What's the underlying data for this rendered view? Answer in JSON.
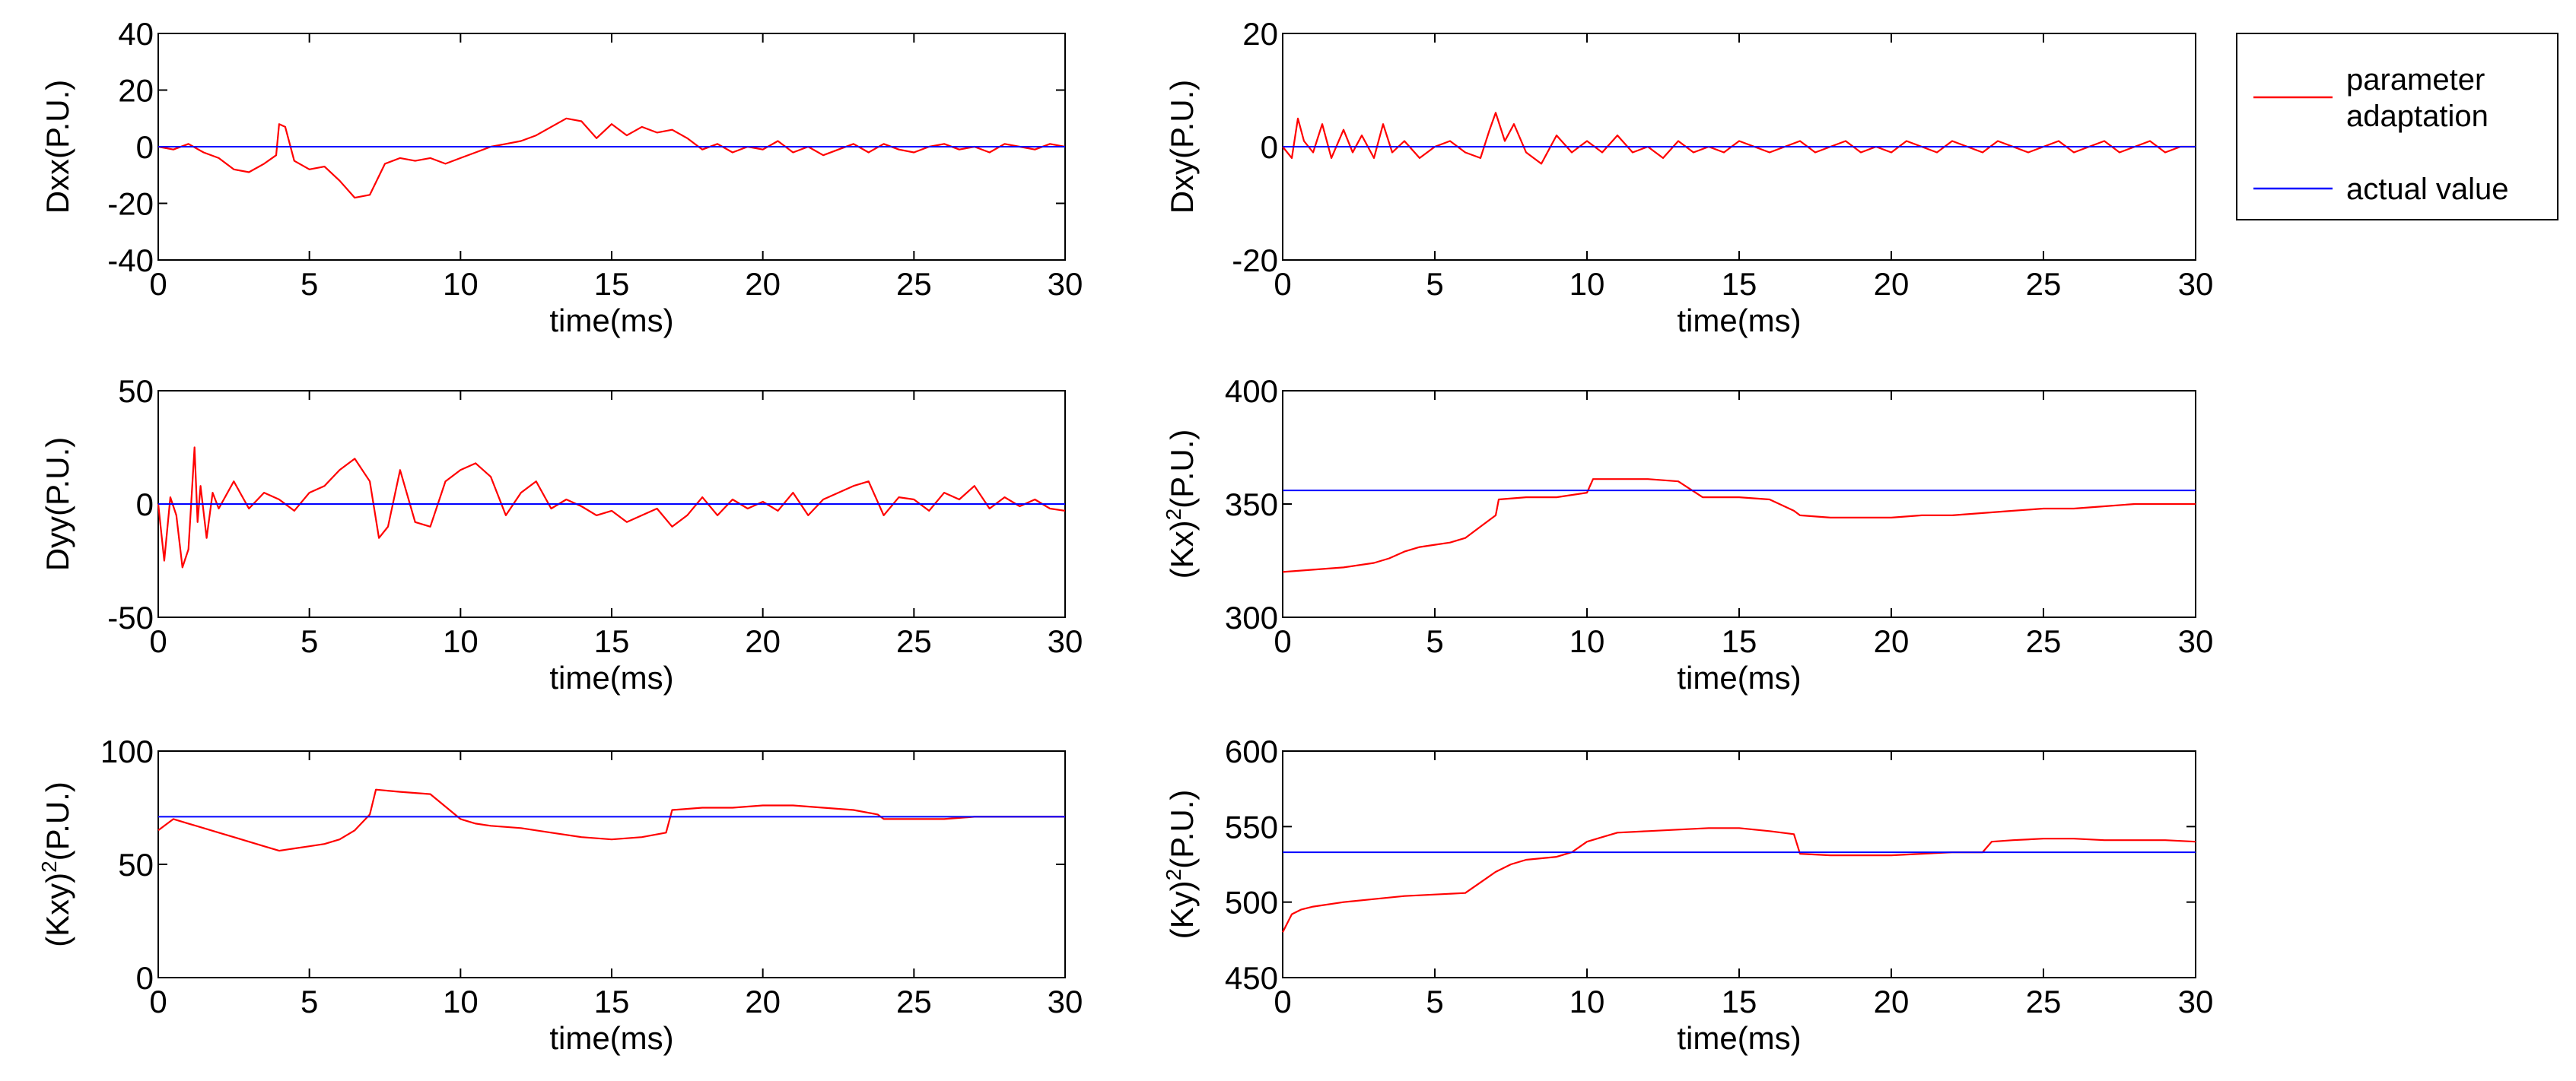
{
  "chart_data": [
    {
      "type": "line",
      "ylabel": "Dxx(P.U.)",
      "ylabel_sup": "",
      "xlabel": "time(ms)",
      "xlim": [
        0,
        30
      ],
      "ylim": [
        -40,
        40
      ],
      "xticks": [
        0,
        5,
        10,
        15,
        20,
        25,
        30
      ],
      "yticks": [
        -40,
        -20,
        0,
        20,
        40
      ],
      "actual_value": 0,
      "series": [
        {
          "name": "parameter adaptation",
          "x": [
            0,
            0.5,
            1,
            1.5,
            2,
            2.5,
            3,
            3.5,
            3.9,
            4.0,
            4.2,
            4.5,
            5,
            5.5,
            6,
            6.5,
            7,
            7.5,
            8,
            8.5,
            9,
            9.5,
            10,
            10.5,
            11,
            11.5,
            12,
            12.5,
            13,
            13.5,
            14,
            14.5,
            15,
            15.5,
            16,
            16.5,
            17,
            17.5,
            18,
            18.5,
            19,
            19.5,
            20,
            20.5,
            21,
            21.5,
            22,
            22.5,
            23,
            23.5,
            24,
            24.5,
            25,
            25.5,
            26,
            26.5,
            27,
            27.5,
            28,
            28.5,
            29,
            29.5,
            30
          ],
          "y": [
            0,
            -1,
            1,
            -2,
            -4,
            -8,
            -9,
            -6,
            -3,
            8,
            7,
            -5,
            -8,
            -7,
            -12,
            -18,
            -17,
            -6,
            -4,
            -5,
            -4,
            -6,
            -4,
            -2,
            0,
            1,
            2,
            4,
            7,
            10,
            9,
            3,
            8,
            4,
            7,
            5,
            6,
            3,
            -1,
            1,
            -2,
            0,
            -1,
            2,
            -2,
            0,
            -3,
            -1,
            1,
            -2,
            1,
            -1,
            -2,
            0,
            1,
            -1,
            0,
            -2,
            1,
            0,
            -1,
            1,
            0
          ]
        },
        {
          "name": "actual value",
          "x": [
            0,
            30
          ],
          "y": [
            0,
            0
          ]
        }
      ]
    },
    {
      "type": "line",
      "ylabel": "Dxy(P.U.)",
      "ylabel_sup": "",
      "xlabel": "time(ms)",
      "xlim": [
        0,
        30
      ],
      "ylim": [
        -20,
        20
      ],
      "xticks": [
        0,
        5,
        10,
        15,
        20,
        25,
        30
      ],
      "yticks": [
        -20,
        0,
        20
      ],
      "actual_value": 0,
      "series": [
        {
          "name": "parameter adaptation",
          "x": [
            0,
            0.3,
            0.5,
            0.7,
            1,
            1.3,
            1.6,
            2,
            2.3,
            2.6,
            3,
            3.3,
            3.6,
            4,
            4.5,
            5,
            5.5,
            6,
            6.5,
            6.8,
            7,
            7.3,
            7.6,
            8,
            8.5,
            9,
            9.5,
            10,
            10.5,
            11,
            11.5,
            12,
            12.5,
            13,
            13.5,
            14,
            14.5,
            15,
            15.5,
            16,
            16.5,
            17,
            17.5,
            18,
            18.5,
            19,
            19.5,
            20,
            20.5,
            21,
            21.5,
            22,
            22.5,
            23,
            23.5,
            24,
            24.5,
            25,
            25.5,
            26,
            26.5,
            27,
            27.5,
            28,
            28.5,
            29,
            29.5,
            30
          ],
          "y": [
            0,
            -2,
            5,
            1,
            -1,
            4,
            -2,
            3,
            -1,
            2,
            -2,
            4,
            -1,
            1,
            -2,
            0,
            1,
            -1,
            -2,
            3,
            6,
            1,
            4,
            -1,
            -3,
            2,
            -1,
            1,
            -1,
            2,
            -1,
            0,
            -2,
            1,
            -1,
            0,
            -1,
            1,
            0,
            -1,
            0,
            1,
            -1,
            0,
            1,
            -1,
            0,
            -1,
            1,
            0,
            -1,
            1,
            0,
            -1,
            1,
            0,
            -1,
            0,
            1,
            -1,
            0,
            1,
            -1,
            0,
            1,
            -1,
            0,
            0
          ]
        },
        {
          "name": "actual value",
          "x": [
            0,
            30
          ],
          "y": [
            0,
            0
          ]
        }
      ]
    },
    {
      "type": "line",
      "ylabel": "Dyy(P.U.)",
      "ylabel_sup": "",
      "xlabel": "time(ms)",
      "xlim": [
        0,
        30
      ],
      "ylim": [
        -50,
        50
      ],
      "xticks": [
        0,
        5,
        10,
        15,
        20,
        25,
        30
      ],
      "yticks": [
        -50,
        0,
        50
      ],
      "actual_value": 0,
      "series": [
        {
          "name": "parameter adaptation",
          "x": [
            0,
            0.2,
            0.4,
            0.6,
            0.8,
            1.0,
            1.2,
            1.3,
            1.4,
            1.6,
            1.8,
            2,
            2.5,
            3,
            3.5,
            4,
            4.5,
            5,
            5.5,
            6,
            6.5,
            7,
            7.3,
            7.6,
            8,
            8.5,
            9,
            9.5,
            10,
            10.5,
            11,
            11.5,
            12,
            12.5,
            13,
            13.5,
            14,
            14.5,
            15,
            15.5,
            16,
            16.5,
            17,
            17.5,
            18,
            18.5,
            19,
            19.5,
            20,
            20.5,
            21,
            21.5,
            22,
            22.5,
            23,
            23.5,
            24,
            24.5,
            25,
            25.5,
            26,
            26.5,
            27,
            27.5,
            28,
            28.5,
            29,
            29.5,
            30
          ],
          "y": [
            0,
            -25,
            3,
            -5,
            -28,
            -20,
            25,
            -8,
            8,
            -15,
            5,
            -2,
            10,
            -2,
            5,
            2,
            -3,
            5,
            8,
            15,
            20,
            10,
            -15,
            -10,
            15,
            -8,
            -10,
            10,
            15,
            18,
            12,
            -5,
            5,
            10,
            -2,
            2,
            -1,
            -5,
            -3,
            -8,
            -5,
            -2,
            -10,
            -5,
            3,
            -5,
            2,
            -2,
            1,
            -3,
            5,
            -5,
            2,
            5,
            8,
            10,
            -5,
            3,
            2,
            -3,
            5,
            2,
            8,
            -2,
            3,
            -1,
            2,
            -2,
            -3
          ]
        },
        {
          "name": "actual value",
          "x": [
            0,
            30
          ],
          "y": [
            0,
            0
          ]
        }
      ]
    },
    {
      "type": "line",
      "ylabel": "(Kx)",
      "ylabel_sup": "2",
      "ylabel_tail": "(P.U.)",
      "xlabel": "time(ms)",
      "xlim": [
        0,
        30
      ],
      "ylim": [
        300,
        400
      ],
      "xticks": [
        0,
        5,
        10,
        15,
        20,
        25,
        30
      ],
      "yticks": [
        300,
        350,
        400
      ],
      "actual_value": 356,
      "series": [
        {
          "name": "parameter adaptation",
          "x": [
            0,
            1,
            2,
            3,
            3.5,
            4,
            4.5,
            5,
            5.5,
            6,
            6.5,
            7,
            7.1,
            8,
            9,
            10,
            10.2,
            11,
            12,
            13,
            13.8,
            14,
            15,
            16,
            16.8,
            17,
            18,
            19,
            20,
            21,
            22,
            23,
            24,
            25,
            26,
            27,
            28,
            29,
            30
          ],
          "y": [
            320,
            321,
            322,
            324,
            326,
            329,
            331,
            332,
            333,
            335,
            340,
            345,
            352,
            353,
            353,
            355,
            361,
            361,
            361,
            360,
            353,
            353,
            353,
            352,
            347,
            345,
            344,
            344,
            344,
            345,
            345,
            346,
            347,
            348,
            348,
            349,
            350,
            350,
            350
          ]
        },
        {
          "name": "actual value",
          "x": [
            0,
            30
          ],
          "y": [
            356,
            356
          ]
        }
      ]
    },
    {
      "type": "line",
      "ylabel": "(Kxy)",
      "ylabel_sup": "2",
      "ylabel_tail": "(P.U.)",
      "xlabel": "time(ms)",
      "xlim": [
        0,
        30
      ],
      "ylim": [
        0,
        100
      ],
      "xticks": [
        0,
        5,
        10,
        15,
        20,
        25,
        30
      ],
      "yticks": [
        0,
        50,
        100
      ],
      "actual_value": 71,
      "series": [
        {
          "name": "parameter adaptation",
          "x": [
            0,
            0.5,
            1,
            1.5,
            2,
            2.5,
            3,
            3.5,
            4,
            4.5,
            5,
            5.5,
            6,
            6.5,
            7,
            7.2,
            8,
            9,
            10,
            10.5,
            11,
            12,
            13,
            14,
            15,
            16,
            16.8,
            17,
            18,
            19,
            20,
            21,
            22,
            23,
            23.8,
            24,
            25,
            26,
            27,
            28,
            29,
            30
          ],
          "y": [
            65,
            70,
            68,
            66,
            64,
            62,
            60,
            58,
            56,
            57,
            58,
            59,
            61,
            65,
            72,
            83,
            82,
            81,
            70,
            68,
            67,
            66,
            64,
            62,
            61,
            62,
            64,
            74,
            75,
            75,
            76,
            76,
            75,
            74,
            72,
            70,
            70,
            70,
            71,
            71,
            71,
            71
          ]
        },
        {
          "name": "actual value",
          "x": [
            0,
            30
          ],
          "y": [
            71,
            71
          ]
        }
      ]
    },
    {
      "type": "line",
      "ylabel": "(Ky)",
      "ylabel_sup": "2",
      "ylabel_tail": "(P.U.)",
      "xlabel": "time(ms)",
      "xlim": [
        0,
        30
      ],
      "ylim": [
        450,
        600
      ],
      "xticks": [
        0,
        5,
        10,
        15,
        20,
        25,
        30
      ],
      "yticks": [
        450,
        500,
        550,
        600
      ],
      "actual_value": 533,
      "series": [
        {
          "name": "parameter adaptation",
          "x": [
            0,
            0.3,
            0.6,
            1,
            2,
            3,
            4,
            5,
            6,
            6.5,
            7,
            7.5,
            8,
            9,
            9.5,
            10,
            10.5,
            11,
            12,
            13,
            14,
            15,
            16,
            16.8,
            17,
            18,
            19,
            20,
            21,
            22,
            23,
            23.3,
            24,
            25,
            26,
            27,
            28,
            29,
            30
          ],
          "y": [
            480,
            492,
            495,
            497,
            500,
            502,
            504,
            505,
            506,
            513,
            520,
            525,
            528,
            530,
            533,
            540,
            543,
            546,
            547,
            548,
            549,
            549,
            547,
            545,
            532,
            531,
            531,
            531,
            532,
            533,
            533,
            540,
            541,
            542,
            542,
            541,
            541,
            541,
            540
          ]
        },
        {
          "name": "actual value",
          "x": [
            0,
            30
          ],
          "y": [
            533,
            533
          ]
        }
      ]
    }
  ],
  "legend": {
    "entries": [
      {
        "label_lines": [
          "parameter",
          "adaptation"
        ],
        "color": "#ff0000"
      },
      {
        "label_lines": [
          "actual value"
        ],
        "color": "#0000ff"
      }
    ],
    "placement": "top-right"
  },
  "colors": {
    "adaptation": "#ff0000",
    "actual": "#0000ff",
    "axis": "#000000"
  }
}
